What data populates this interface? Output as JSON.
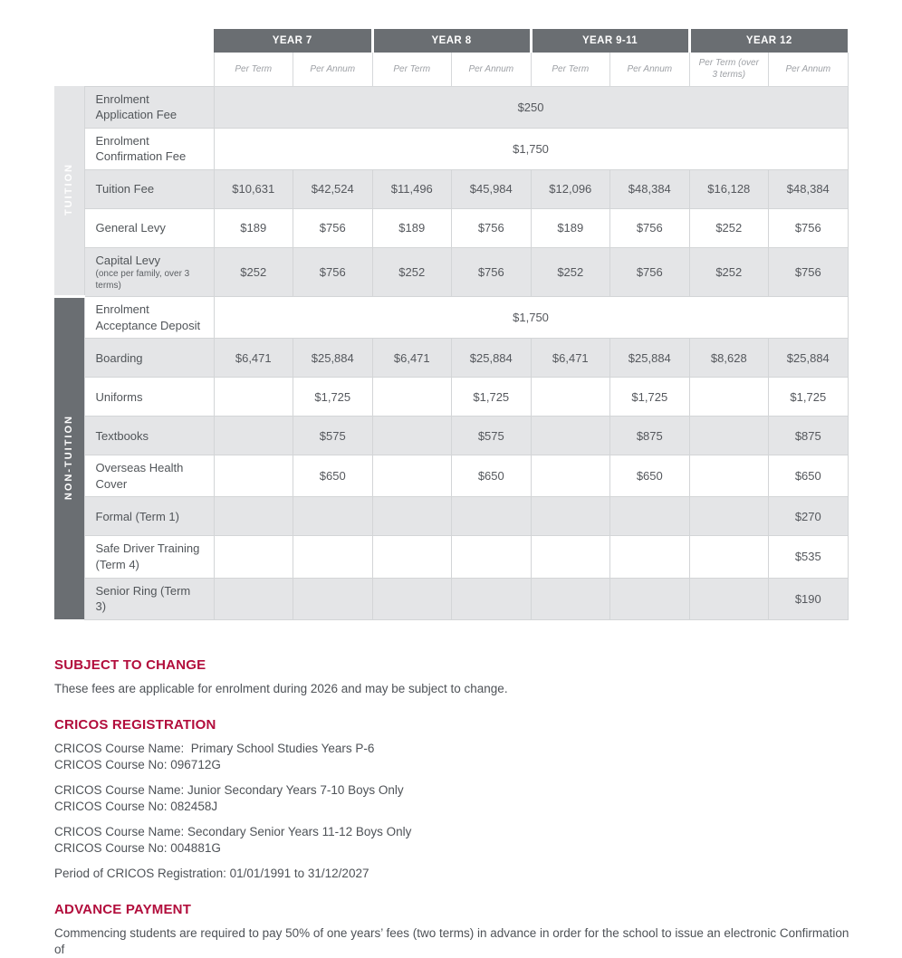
{
  "colors": {
    "header_bg": "#6a6e72",
    "stripe_bg": "#e4e5e7",
    "border": "#d3d5d7",
    "heading_red": "#b20d3c",
    "cell_text": "#55585d"
  },
  "table": {
    "col_groups": [
      {
        "label": "YEAR 7",
        "sub": [
          "Per Term",
          "Per Annum"
        ]
      },
      {
        "label": "YEAR 8",
        "sub": [
          "Per Term",
          "Per Annum"
        ]
      },
      {
        "label": "YEAR 9-11",
        "sub": [
          "Per Term",
          "Per Annum"
        ]
      },
      {
        "label": "YEAR 12",
        "sub": [
          "Per Term (over 3 terms)",
          "Per Annum"
        ]
      }
    ],
    "sections": [
      {
        "label": "TUITION",
        "rows": [
          {
            "label": "Enrolment Application Fee",
            "span_value": "$250"
          },
          {
            "label": "Enrolment Confirmation Fee",
            "span_value": "$1,750"
          },
          {
            "label": "Tuition Fee",
            "values": [
              "$10,631",
              "$42,524",
              "$11,496",
              "$45,984",
              "$12,096",
              "$48,384",
              "$16,128",
              "$48,384"
            ]
          },
          {
            "label": "General Levy",
            "values": [
              "$189",
              "$756",
              "$189",
              "$756",
              "$189",
              "$756",
              "$252",
              "$756"
            ]
          },
          {
            "label": "Capital Levy",
            "sublabel": "(once per family, over 3 terms)",
            "values": [
              "$252",
              "$756",
              "$252",
              "$756",
              "$252",
              "$756",
              "$252",
              "$756"
            ]
          }
        ]
      },
      {
        "label": "NON-TUITION",
        "rows": [
          {
            "label": "Enrolment Acceptance Deposit",
            "span_value": "$1,750"
          },
          {
            "label": "Boarding",
            "values": [
              "$6,471",
              "$25,884",
              "$6,471",
              "$25,884",
              "$6,471",
              "$25,884",
              "$8,628",
              "$25,884"
            ]
          },
          {
            "label": "Uniforms",
            "values": [
              "",
              "$1,725",
              "",
              "$1,725",
              "",
              "$1,725",
              "",
              "$1,725"
            ]
          },
          {
            "label": "Textbooks",
            "values": [
              "",
              "$575",
              "",
              "$575",
              "",
              "$875",
              "",
              "$875"
            ]
          },
          {
            "label": "Overseas Health Cover",
            "values": [
              "",
              "$650",
              "",
              "$650",
              "",
              "$650",
              "",
              "$650"
            ]
          },
          {
            "label": "Formal (Term 1)",
            "values": [
              "",
              "",
              "",
              "",
              "",
              "",
              "",
              "$270"
            ]
          },
          {
            "label": "Safe Driver Training (Term 4)",
            "values": [
              "",
              "",
              "",
              "",
              "",
              "",
              "",
              "$535"
            ]
          },
          {
            "label": "Senior Ring (Term 3)",
            "values": [
              "",
              "",
              "",
              "",
              "",
              "",
              "",
              "$190"
            ]
          }
        ]
      }
    ]
  },
  "notes": [
    {
      "heading": "SUBJECT TO CHANGE",
      "paragraphs": [
        [
          "These fees are applicable for enrolment during 2026 and may be subject to change."
        ]
      ]
    },
    {
      "heading": "CRICOS REGISTRATION",
      "paragraphs": [
        [
          "CRICOS Course Name:  Primary School Studies Years P-6",
          "CRICOS Course No: 096712G"
        ],
        [
          "CRICOS Course Name: Junior Secondary Years 7-10 Boys Only",
          "CRICOS Course No: 082458J"
        ],
        [
          "CRICOS Course Name: Secondary Senior Years 11-12 Boys Only",
          "CRICOS Course No: 004881G"
        ],
        [
          "Period of CRICOS Registration: 01/01/1991 to 31/12/2027"
        ]
      ]
    },
    {
      "heading": "ADVANCE PAYMENT",
      "paragraphs": [
        [
          "Commencing students are required to pay 50% of one years’ fees (two terms) in advance in order for the school to issue an electronic Confirmation of"
        ]
      ]
    }
  ]
}
